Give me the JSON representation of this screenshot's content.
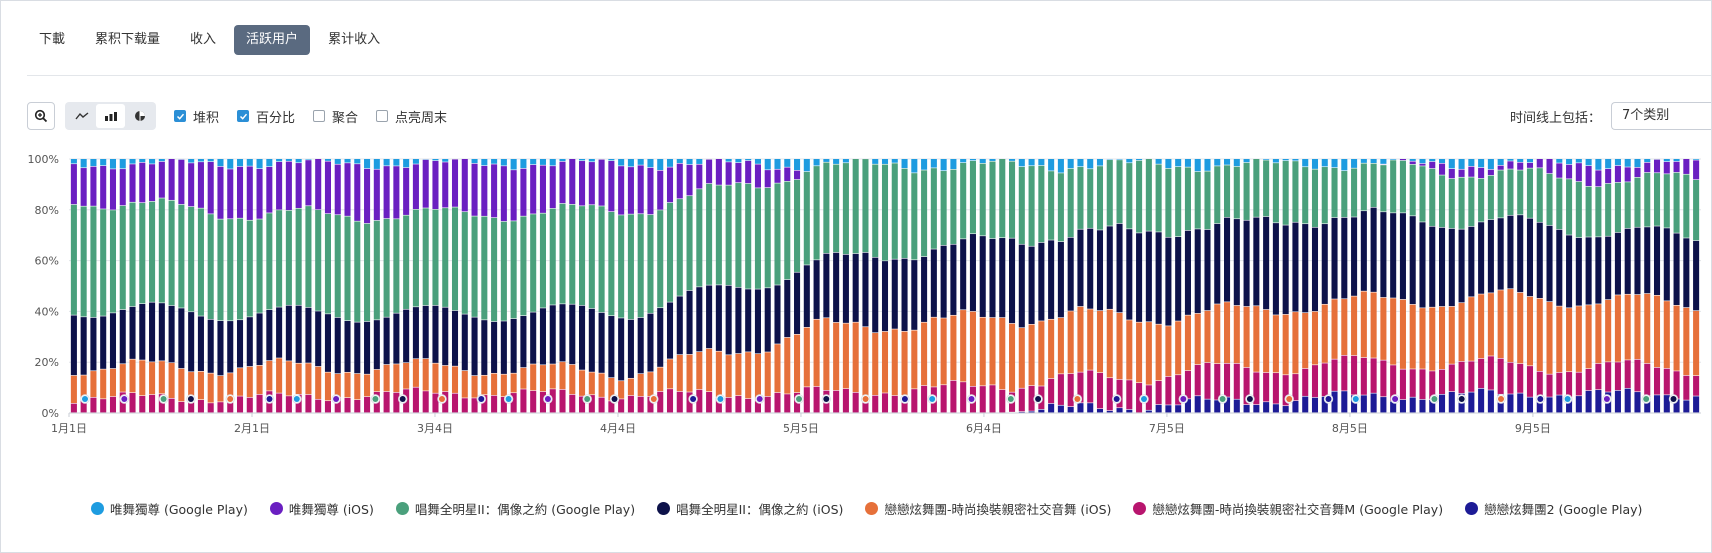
{
  "tabs": [
    {
      "label": "下載",
      "active": false
    },
    {
      "label": "累积下载量",
      "active": false
    },
    {
      "label": "收入",
      "active": false
    },
    {
      "label": "活跃用户",
      "active": true
    },
    {
      "label": "累计收入",
      "active": false
    }
  ],
  "toolbar": {
    "zoom_icon": "zoom-in-icon",
    "chart_types": [
      "line-chart-icon",
      "bar-chart-icon",
      "pie-chart-icon"
    ],
    "options": [
      {
        "label": "堆积",
        "checked": true
      },
      {
        "label": "百分比",
        "checked": true
      },
      {
        "label": "聚合",
        "checked": false
      },
      {
        "label": "点亮周末",
        "checked": false
      }
    ],
    "timeline_label": "时间线上包括：",
    "timeline_value": "7个类别"
  },
  "chart_data": {
    "type": "bar",
    "stacked": true,
    "percent": true,
    "ylim": [
      0,
      100
    ],
    "y_ticks": [
      "0%",
      "20%",
      "40%",
      "60%",
      "80%",
      "100%"
    ],
    "x_ticks": [
      "1月1日",
      "2月1日",
      "3月4日",
      "4月4日",
      "5月5日",
      "6月4日",
      "7月5日",
      "8月5日",
      "9月5日"
    ],
    "grid": "horizontal",
    "legend_position": "bottom",
    "anchors": {
      "x": [
        0,
        19,
        38,
        57,
        76,
        95,
        114,
        133,
        152,
        166
      ],
      "s0": [
        2,
        2,
        2,
        2,
        2,
        2,
        2,
        2,
        2,
        2
      ],
      "s1": [
        14,
        20,
        20,
        18,
        0,
        0,
        0,
        0,
        5,
        6
      ],
      "s2": [
        43,
        39,
        39,
        40,
        30,
        22,
        20,
        18,
        18,
        22
      ],
      "s3": [
        23,
        21,
        21,
        24,
        20,
        23,
        28,
        30,
        26,
        25
      ],
      "s4": [
        12,
        12,
        10,
        9,
        20,
        20,
        18,
        22,
        25,
        24
      ],
      "s5": [
        6,
        6,
        8,
        7,
        6,
        8,
        10,
        12,
        10,
        10
      ],
      "s6": [
        0,
        0,
        0,
        0,
        0,
        0,
        3,
        6,
        7,
        7
      ]
    },
    "series": [
      {
        "name": "唯舞獨尊 (Google Play)",
        "color": "#1e9ce0"
      },
      {
        "name": "唯舞獨尊 (iOS)",
        "color": "#6a1fc1"
      },
      {
        "name": "唱舞全明星II：偶像之約 (Google Play)",
        "color": "#4aa07c"
      },
      {
        "name": "唱舞全明星II：偶像之約 (iOS)",
        "color": "#0d124a"
      },
      {
        "name": "戀戀炫舞團-時尚換裝親密社交音舞 (iOS)",
        "color": "#e6703a"
      },
      {
        "name": "戀戀炫舞團-時尚換裝親密社交音舞M (Google Play)",
        "color": "#b8156e"
      },
      {
        "name": "戀戀炫舞團2 (Google Play)",
        "color": "#1d1b96"
      }
    ]
  }
}
